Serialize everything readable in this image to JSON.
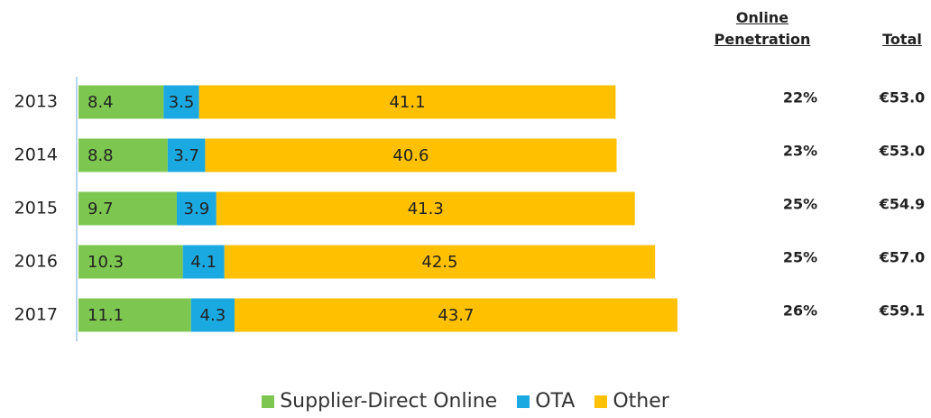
{
  "chart_data": {
    "type": "stacked_barh",
    "categories": [
      "2013",
      "2014",
      "2015",
      "2016",
      "2017"
    ],
    "series": [
      {
        "name": "Supplier-Direct Online",
        "color": "#7dc750",
        "values": [
          8.4,
          8.8,
          9.7,
          10.3,
          11.1
        ]
      },
      {
        "name": "OTA",
        "color": "#1ba9e1",
        "values": [
          3.5,
          3.7,
          3.9,
          4.1,
          4.3
        ]
      },
      {
        "name": "Other",
        "color": "#ffc000",
        "values": [
          41.1,
          40.6,
          41.3,
          42.5,
          43.7
        ]
      }
    ],
    "xlim": [
      0,
      60
    ],
    "side_columns": [
      {
        "title": "Online Penetration",
        "values": [
          22,
          23,
          25,
          25,
          26
        ],
        "value_labels": [
          "22%",
          "23%",
          "25%",
          "25%",
          "26%"
        ]
      },
      {
        "title": "Total",
        "values": [
          53.0,
          53.0,
          54.9,
          57.0,
          59.1
        ],
        "value_labels": [
          "€53.0",
          "€53.0",
          "€54.9",
          "€57.0",
          "€59.1"
        ]
      }
    ]
  }
}
